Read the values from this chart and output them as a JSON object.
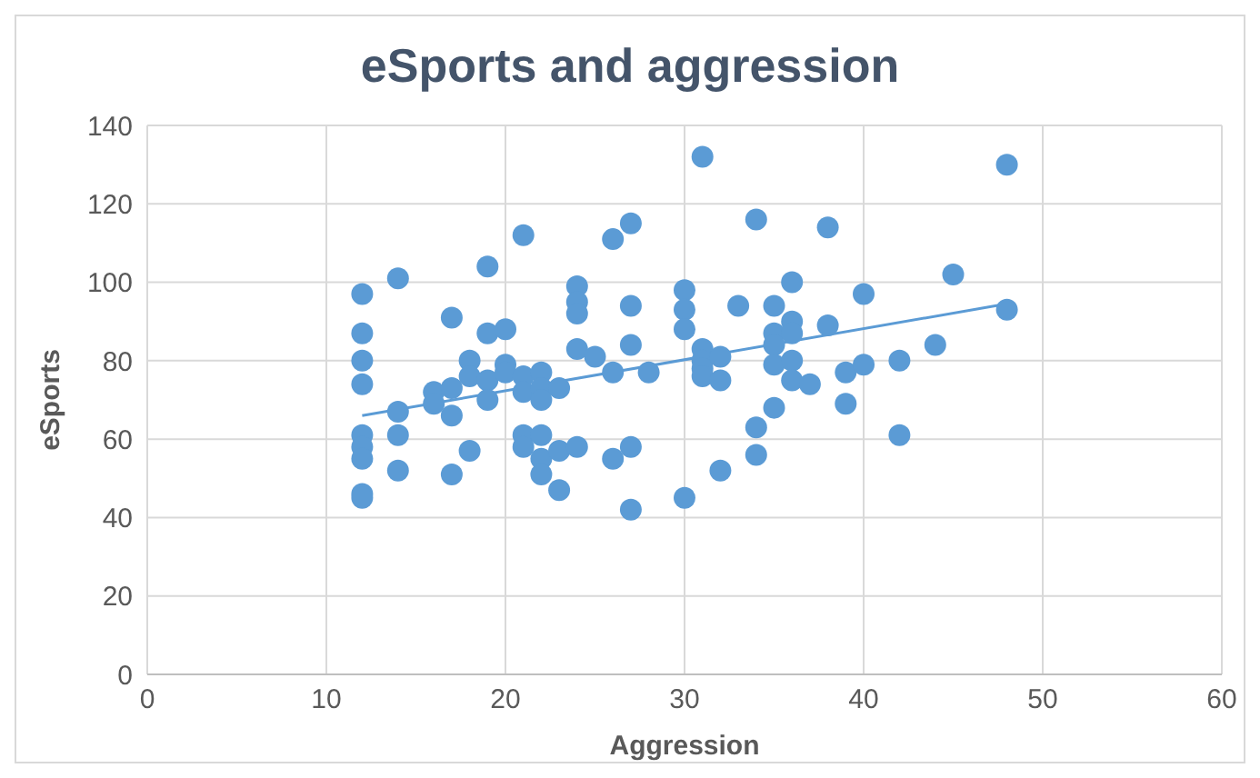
{
  "chart_data": {
    "type": "scatter",
    "title": "eSports and aggression",
    "xlabel": "Aggression",
    "ylabel": "eSports",
    "xlim": [
      0,
      60
    ],
    "xticks": [
      0,
      10,
      20,
      30,
      40,
      50,
      60
    ],
    "ylim": [
      0,
      140
    ],
    "yticks": [
      0,
      20,
      40,
      60,
      80,
      100,
      120,
      140
    ],
    "grid": true,
    "legend": false,
    "series": [
      {
        "color": "#5b9bd5",
        "marker": "circle",
        "x": [
          12,
          12,
          12,
          12,
          12,
          12,
          12,
          12,
          12,
          14,
          14,
          14,
          14,
          16,
          16,
          17,
          17,
          17,
          17,
          18,
          18,
          18,
          19,
          19,
          19,
          19,
          20,
          20,
          20,
          21,
          21,
          21,
          21,
          21,
          22,
          22,
          22,
          22,
          22,
          22,
          23,
          23,
          23,
          24,
          24,
          24,
          24,
          24,
          25,
          26,
          26,
          26,
          27,
          27,
          27,
          27,
          27,
          28,
          30,
          30,
          30,
          30,
          31,
          31,
          31,
          31,
          31,
          32,
          32,
          32,
          33,
          34,
          34,
          34,
          35,
          35,
          35,
          35,
          35,
          36,
          36,
          36,
          36,
          36,
          37,
          38,
          38,
          39,
          39,
          40,
          40,
          42,
          42,
          44,
          45,
          48,
          48
        ],
        "values": [
          97,
          87,
          80,
          74,
          61,
          58,
          55,
          46,
          45,
          101,
          67,
          61,
          52,
          72,
          69,
          91,
          73,
          66,
          51,
          80,
          76,
          57,
          104,
          87,
          75,
          70,
          88,
          79,
          77,
          112,
          76,
          72,
          61,
          58,
          77,
          73,
          70,
          61,
          55,
          51,
          73,
          57,
          47,
          99,
          95,
          92,
          83,
          58,
          81,
          111,
          77,
          55,
          115,
          94,
          84,
          58,
          42,
          77,
          98,
          93,
          88,
          45,
          132,
          83,
          80,
          78,
          76,
          81,
          75,
          52,
          94,
          116,
          63,
          56,
          94,
          87,
          84,
          79,
          68,
          100,
          90,
          87,
          80,
          75,
          74,
          114,
          89,
          77,
          69,
          97,
          79,
          80,
          61,
          84,
          102,
          130,
          93
        ]
      },
      {
        "type": "line",
        "color": "#5b9bd5",
        "marker": "none",
        "line_style": "solid",
        "x": [
          12,
          48
        ],
        "values": [
          66,
          94.5
        ]
      }
    ]
  }
}
